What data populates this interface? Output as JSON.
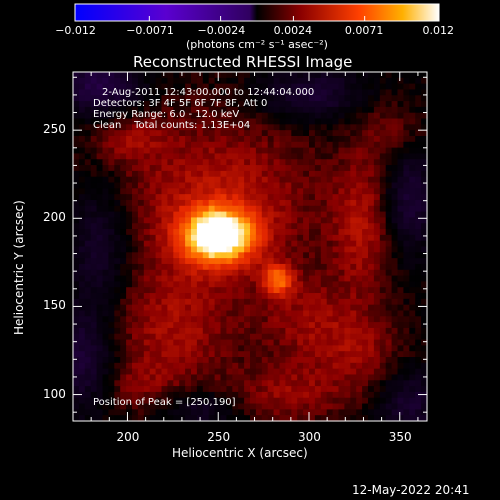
{
  "colorbar": {
    "tick_labels": [
      "−0.012",
      "−0.0071",
      "−0.0024",
      "0.0024",
      "0.0071",
      "0.012"
    ],
    "ticks": [
      -0.012,
      -0.0071,
      -0.0024,
      0.0024,
      0.0071,
      0.012
    ],
    "range": [
      -0.012,
      0.012
    ],
    "unit_label": "(photons cm⁻² s⁻¹ asec⁻²)"
  },
  "chart_data": {
    "type": "heatmap",
    "title": "Reconstructed RHESSI Image",
    "xlabel": "Heliocentric X (arcsec)",
    "ylabel": "Heliocentric Y (arcsec)",
    "xlim": [
      170,
      365
    ],
    "ylim": [
      85,
      283
    ],
    "x_ticks": [
      200,
      250,
      300,
      350
    ],
    "y_ticks": [
      100,
      150,
      200,
      250
    ],
    "peak": {
      "x": 250,
      "y": 190
    },
    "sources": [
      {
        "x": 250,
        "y": 190,
        "sx": 14,
        "sy": 11,
        "amp": 1.0
      },
      {
        "x": 283,
        "y": 165,
        "sx": 6,
        "sy": 6,
        "amp": 0.55
      },
      {
        "x": 250,
        "y": 210,
        "sx": 40,
        "sy": 35,
        "amp": 0.35
      },
      {
        "x": 330,
        "y": 195,
        "sx": 12,
        "sy": 30,
        "amp": 0.3
      },
      {
        "x": 225,
        "y": 135,
        "sx": 25,
        "sy": 25,
        "amp": 0.28
      },
      {
        "x": 300,
        "y": 140,
        "sx": 18,
        "sy": 18,
        "amp": 0.25
      },
      {
        "x": 290,
        "y": 100,
        "sx": 25,
        "sy": 12,
        "amp": 0.25
      },
      {
        "x": 330,
        "y": 125,
        "sx": 15,
        "sy": 15,
        "amp": 0.22
      },
      {
        "x": 205,
        "y": 105,
        "sx": 15,
        "sy": 10,
        "amp": 0.15
      },
      {
        "x": 200,
        "y": 245,
        "sx": 15,
        "sy": 10,
        "amp": 0.2
      },
      {
        "x": 345,
        "y": 250,
        "sx": 12,
        "sy": 12,
        "amp": 0.18
      }
    ],
    "negatives": [
      {
        "x": 185,
        "y": 275,
        "sx": 15,
        "sy": 12,
        "amp": 0.45
      },
      {
        "x": 300,
        "y": 270,
        "sx": 20,
        "sy": 10,
        "amp": 0.35
      },
      {
        "x": 355,
        "y": 210,
        "sx": 10,
        "sy": 20,
        "amp": 0.35
      },
      {
        "x": 185,
        "y": 185,
        "sx": 12,
        "sy": 25,
        "amp": 0.3
      },
      {
        "x": 175,
        "y": 120,
        "sx": 12,
        "sy": 20,
        "amp": 0.35
      },
      {
        "x": 355,
        "y": 95,
        "sx": 12,
        "sy": 12,
        "amp": 0.3
      },
      {
        "x": 240,
        "y": 92,
        "sx": 15,
        "sy": 8,
        "amp": 0.25
      }
    ]
  },
  "info": {
    "time_range": "2-Aug-2011 12:43:00.000 to 12:44:04.000",
    "detectors": "Detectors: 3F 4F 5F 6F 7F 8F, Att 0",
    "energy": "Energy Range: 6.0 - 12.0 keV",
    "method": "Clean    Total counts: 1.13E+04",
    "peak_text": "Position of Peak = [250,190]"
  },
  "timestamp": "12-May-2022 20:41"
}
